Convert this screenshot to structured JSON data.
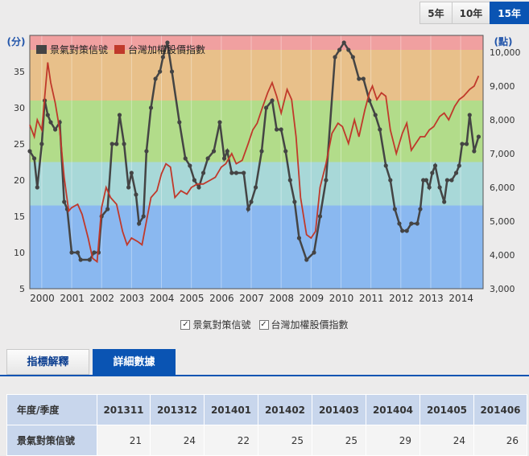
{
  "range_tabs": [
    {
      "label": "5年",
      "active": false
    },
    {
      "label": "10年",
      "active": false
    },
    {
      "label": "15年",
      "active": true
    }
  ],
  "chart_data": {
    "type": "line",
    "y_left_unit": "(分)",
    "y_right_unit": "(點)",
    "y_left_range": [
      5,
      40
    ],
    "y_right_range": [
      3000,
      10500
    ],
    "y_left_ticks": [
      5,
      10,
      15,
      20,
      25,
      30,
      35
    ],
    "y_right_ticks": [
      "3,000",
      "4,000",
      "5,000",
      "6,000",
      "7,000",
      "8,000",
      "9,000",
      "10,000"
    ],
    "x_ticks": [
      "2000",
      "2001",
      "2002",
      "2003",
      "2004",
      "2005",
      "2006",
      "2007",
      "2008",
      "2009",
      "2010",
      "2011",
      "2012",
      "2013",
      "2014"
    ],
    "x_range": [
      1999.6,
      2014.75
    ],
    "bands": [
      {
        "from": 32,
        "to": 40,
        "color": "#f0a0a0"
      },
      {
        "from": 31,
        "to": 38,
        "color": "#e8c08a"
      },
      {
        "from": 22.5,
        "to": 31,
        "color": "#b2dc8a"
      },
      {
        "from": 16.5,
        "to": 22.5,
        "color": "#a8d8d8"
      },
      {
        "from": 5,
        "to": 16.5,
        "color": "#8ab8f0"
      }
    ],
    "series": [
      {
        "name": "景氣對策信號",
        "color": "#444444",
        "axis": "left",
        "points": [
          [
            1999.6,
            24
          ],
          [
            1999.75,
            23
          ],
          [
            1999.85,
            19
          ],
          [
            2000.0,
            25
          ],
          [
            2000.1,
            31
          ],
          [
            2000.2,
            29
          ],
          [
            2000.3,
            28
          ],
          [
            2000.45,
            27
          ],
          [
            2000.6,
            28
          ],
          [
            2000.75,
            17
          ],
          [
            2000.85,
            16
          ],
          [
            2001.0,
            10
          ],
          [
            2001.2,
            10
          ],
          [
            2001.3,
            9
          ],
          [
            2001.6,
            9
          ],
          [
            2001.75,
            10
          ],
          [
            2001.9,
            10
          ],
          [
            2002.0,
            15
          ],
          [
            2002.2,
            16
          ],
          [
            2002.35,
            25
          ],
          [
            2002.5,
            25
          ],
          [
            2002.6,
            29
          ],
          [
            2002.75,
            25
          ],
          [
            2002.9,
            19
          ],
          [
            2003.0,
            21
          ],
          [
            2003.15,
            18
          ],
          [
            2003.25,
            14
          ],
          [
            2003.4,
            15
          ],
          [
            2003.5,
            24
          ],
          [
            2003.65,
            30
          ],
          [
            2003.8,
            34
          ],
          [
            2003.95,
            35
          ],
          [
            2004.05,
            37
          ],
          [
            2004.2,
            39
          ],
          [
            2004.35,
            35
          ],
          [
            2004.6,
            28
          ],
          [
            2004.8,
            23
          ],
          [
            2004.95,
            22
          ],
          [
            2005.1,
            20
          ],
          [
            2005.25,
            19
          ],
          [
            2005.4,
            21
          ],
          [
            2005.55,
            23
          ],
          [
            2005.75,
            24
          ],
          [
            2005.95,
            28
          ],
          [
            2006.1,
            23
          ],
          [
            2006.2,
            24
          ],
          [
            2006.35,
            21
          ],
          [
            2006.5,
            21
          ],
          [
            2006.75,
            21
          ],
          [
            2006.9,
            16
          ],
          [
            2007.0,
            17
          ],
          [
            2007.15,
            19
          ],
          [
            2007.35,
            24
          ],
          [
            2007.5,
            30
          ],
          [
            2007.7,
            31
          ],
          [
            2007.85,
            27
          ],
          [
            2008.0,
            27
          ],
          [
            2008.15,
            24
          ],
          [
            2008.3,
            20
          ],
          [
            2008.45,
            17
          ],
          [
            2008.6,
            12
          ],
          [
            2008.85,
            9
          ],
          [
            2009.1,
            10
          ],
          [
            2009.3,
            15
          ],
          [
            2009.5,
            20
          ],
          [
            2009.8,
            37
          ],
          [
            2009.95,
            38
          ],
          [
            2010.1,
            39
          ],
          [
            2010.25,
            38
          ],
          [
            2010.4,
            37
          ],
          [
            2010.6,
            34
          ],
          [
            2010.75,
            34
          ],
          [
            2010.95,
            31
          ],
          [
            2011.15,
            29
          ],
          [
            2011.3,
            27
          ],
          [
            2011.5,
            22
          ],
          [
            2011.65,
            20
          ],
          [
            2011.8,
            16
          ],
          [
            2011.95,
            14
          ],
          [
            2012.05,
            13
          ],
          [
            2012.2,
            13
          ],
          [
            2012.35,
            14
          ],
          [
            2012.55,
            14
          ],
          [
            2012.65,
            16
          ],
          [
            2012.75,
            20
          ],
          [
            2012.85,
            20
          ],
          [
            2012.95,
            19
          ],
          [
            2013.05,
            21
          ],
          [
            2013.15,
            22
          ],
          [
            2013.3,
            19
          ],
          [
            2013.45,
            17
          ],
          [
            2013.55,
            20
          ],
          [
            2013.7,
            20
          ],
          [
            2013.85,
            21
          ],
          [
            2013.95,
            22
          ],
          [
            2014.05,
            25
          ],
          [
            2014.2,
            25
          ],
          [
            2014.3,
            29
          ],
          [
            2014.45,
            24
          ],
          [
            2014.6,
            26
          ]
        ]
      },
      {
        "name": "台灣加權股價指數",
        "color": "#c0392b",
        "axis": "right",
        "points": [
          [
            1999.6,
            7850
          ],
          [
            1999.75,
            7500
          ],
          [
            1999.85,
            8000
          ],
          [
            2000.0,
            7700
          ],
          [
            2000.1,
            8700
          ],
          [
            2000.2,
            9700
          ],
          [
            2000.3,
            9100
          ],
          [
            2000.45,
            8500
          ],
          [
            2000.6,
            7700
          ],
          [
            2000.75,
            6300
          ],
          [
            2000.9,
            5300
          ],
          [
            2001.0,
            5400
          ],
          [
            2001.2,
            5500
          ],
          [
            2001.35,
            5200
          ],
          [
            2001.55,
            4500
          ],
          [
            2001.7,
            3900
          ],
          [
            2001.85,
            3800
          ],
          [
            2002.0,
            5400
          ],
          [
            2002.15,
            6000
          ],
          [
            2002.3,
            5700
          ],
          [
            2002.5,
            5500
          ],
          [
            2002.7,
            4700
          ],
          [
            2002.85,
            4300
          ],
          [
            2003.0,
            4500
          ],
          [
            2003.2,
            4400
          ],
          [
            2003.35,
            4300
          ],
          [
            2003.5,
            5000
          ],
          [
            2003.65,
            5700
          ],
          [
            2003.85,
            5900
          ],
          [
            2004.0,
            6400
          ],
          [
            2004.15,
            6700
          ],
          [
            2004.3,
            6600
          ],
          [
            2004.45,
            5700
          ],
          [
            2004.65,
            5900
          ],
          [
            2004.85,
            5800
          ],
          [
            2005.0,
            6000
          ],
          [
            2005.2,
            6100
          ],
          [
            2005.4,
            6100
          ],
          [
            2005.6,
            6200
          ],
          [
            2005.8,
            6300
          ],
          [
            2006.0,
            6600
          ],
          [
            2006.15,
            6700
          ],
          [
            2006.35,
            7000
          ],
          [
            2006.5,
            6700
          ],
          [
            2006.7,
            6800
          ],
          [
            2006.9,
            7300
          ],
          [
            2007.05,
            7700
          ],
          [
            2007.2,
            7900
          ],
          [
            2007.35,
            8300
          ],
          [
            2007.55,
            8800
          ],
          [
            2007.7,
            9100
          ],
          [
            2007.85,
            8700
          ],
          [
            2008.0,
            8200
          ],
          [
            2008.2,
            8900
          ],
          [
            2008.35,
            8600
          ],
          [
            2008.5,
            7500
          ],
          [
            2008.65,
            5700
          ],
          [
            2008.85,
            4600
          ],
          [
            2009.0,
            4500
          ],
          [
            2009.15,
            4700
          ],
          [
            2009.3,
            6000
          ],
          [
            2009.5,
            6700
          ],
          [
            2009.7,
            7600
          ],
          [
            2009.9,
            7900
          ],
          [
            2010.05,
            7800
          ],
          [
            2010.25,
            7300
          ],
          [
            2010.45,
            8000
          ],
          [
            2010.6,
            7500
          ],
          [
            2010.8,
            8300
          ],
          [
            2010.95,
            8800
          ],
          [
            2011.05,
            9000
          ],
          [
            2011.2,
            8600
          ],
          [
            2011.35,
            8800
          ],
          [
            2011.5,
            8700
          ],
          [
            2011.65,
            7700
          ],
          [
            2011.85,
            7000
          ],
          [
            2012.05,
            7600
          ],
          [
            2012.2,
            7900
          ],
          [
            2012.35,
            7100
          ],
          [
            2012.5,
            7300
          ],
          [
            2012.65,
            7500
          ],
          [
            2012.8,
            7500
          ],
          [
            2012.95,
            7700
          ],
          [
            2013.1,
            7800
          ],
          [
            2013.3,
            8100
          ],
          [
            2013.45,
            8200
          ],
          [
            2013.6,
            8000
          ],
          [
            2013.8,
            8400
          ],
          [
            2013.95,
            8600
          ],
          [
            2014.1,
            8700
          ],
          [
            2014.3,
            8900
          ],
          [
            2014.45,
            9000
          ],
          [
            2014.6,
            9300
          ]
        ]
      }
    ]
  },
  "legend_checks": [
    {
      "label": "景氣對策信號",
      "checked": true
    },
    {
      "label": "台灣加權股價指數",
      "checked": true
    }
  ],
  "tabs": [
    {
      "label": "指標解釋",
      "active": false
    },
    {
      "label": "詳細數據",
      "active": true
    }
  ],
  "table": {
    "header_label": "年度/季度",
    "columns": [
      "201311",
      "201312",
      "201401",
      "201402",
      "201403",
      "201404",
      "201405",
      "201406"
    ],
    "row_label": "景氣對策信號",
    "values": [
      "21",
      "24",
      "22",
      "25",
      "25",
      "29",
      "24",
      "26"
    ]
  }
}
